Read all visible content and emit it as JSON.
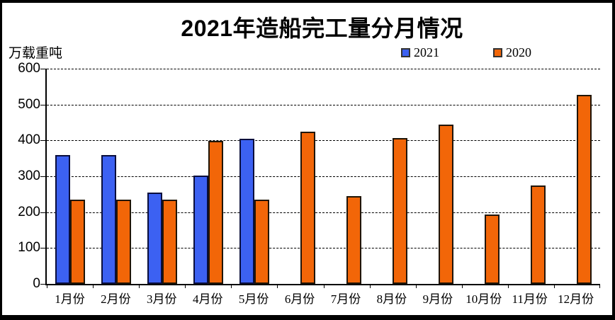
{
  "chart_data": {
    "type": "bar",
    "title": "2021年造船完工量分月情况",
    "unit_label": "万载重吨",
    "categories": [
      "1月份",
      "2月份",
      "3月份",
      "4月份",
      "5月份",
      "6月份",
      "7月份",
      "8月份",
      "9月份",
      "10月份",
      "11月份",
      "12月份"
    ],
    "series": [
      {
        "name": "2021",
        "color": "#3C61F2",
        "border_color": "#0A0E3C",
        "values": [
          360,
          360,
          255,
          302,
          404,
          null,
          null,
          null,
          null,
          null,
          null,
          null
        ]
      },
      {
        "name": "2020",
        "color": "#F26608",
        "border_color": "#201505",
        "values": [
          234,
          234,
          234,
          398,
          234,
          425,
          245,
          406,
          445,
          193,
          275,
          527
        ]
      }
    ],
    "ylabel": "",
    "xlabel": "",
    "yticks": [
      0,
      100,
      200,
      300,
      400,
      500,
      600
    ],
    "ylim": [
      0,
      600
    ],
    "grid": "horizontal-dashed",
    "legend_position": "top-right",
    "gridline_color": "#000000",
    "background_color": "#ffffff"
  }
}
